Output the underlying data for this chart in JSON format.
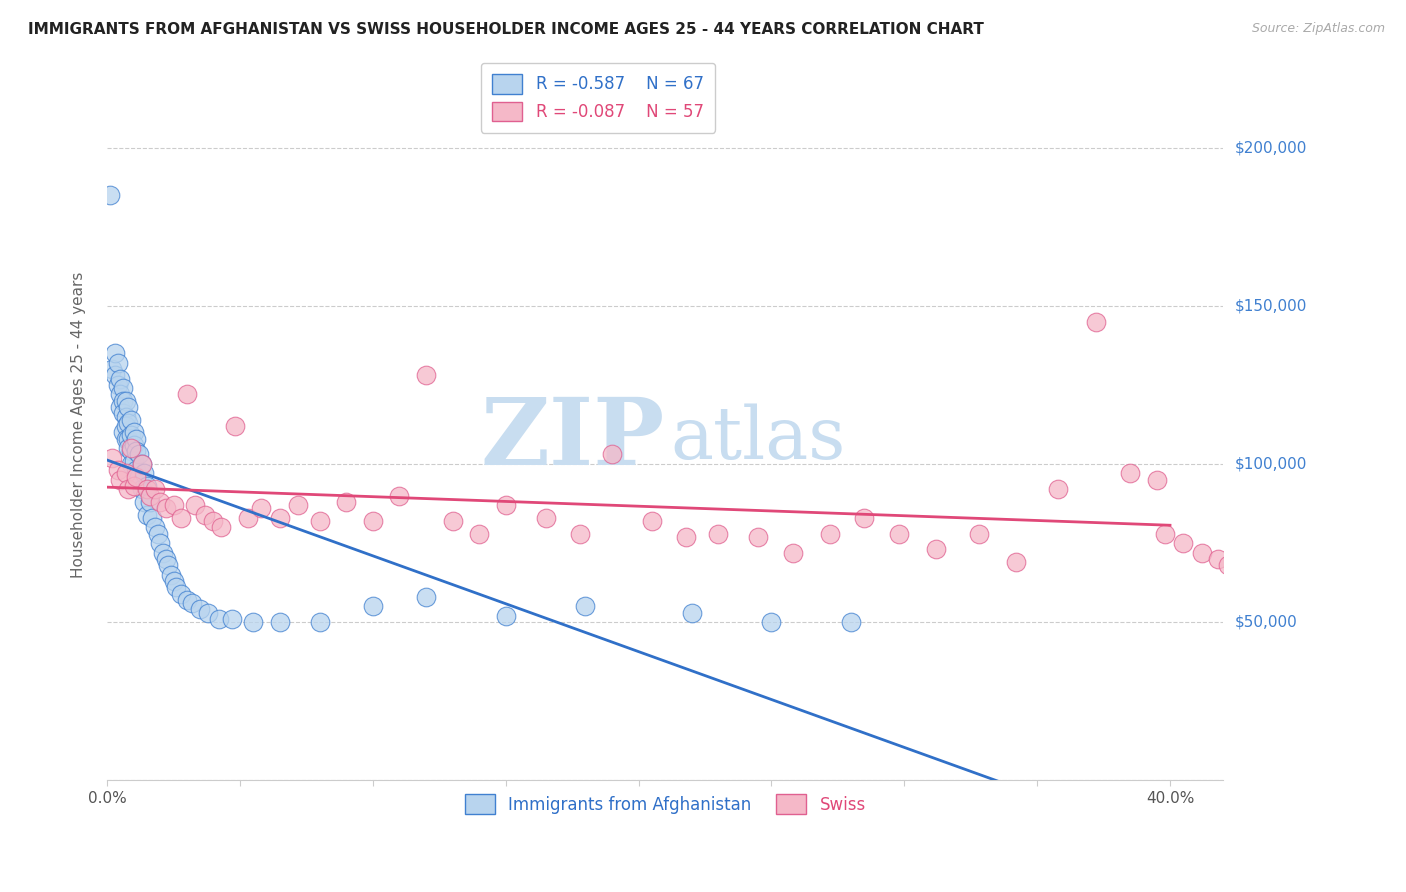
{
  "title": "IMMIGRANTS FROM AFGHANISTAN VS SWISS HOUSEHOLDER INCOME AGES 25 - 44 YEARS CORRELATION CHART",
  "source": "Source: ZipAtlas.com",
  "ylabel": "Householder Income Ages 25 - 44 years",
  "xlim": [
    0.0,
    0.42
  ],
  "ylim": [
    0,
    225000
  ],
  "ytick_vals": [
    0,
    50000,
    100000,
    150000,
    200000
  ],
  "xtick_vals": [
    0.0,
    0.05,
    0.1,
    0.15,
    0.2,
    0.25,
    0.3,
    0.35,
    0.4
  ],
  "legend1_r": "-0.587",
  "legend1_n": "67",
  "legend2_r": "-0.087",
  "legend2_n": "57",
  "legend1_fill": "#b8d4ee",
  "legend2_fill": "#f5b8c8",
  "line1_color": "#3070c8",
  "line2_color": "#e04878",
  "scatter1_edge": "#4080d0",
  "scatter2_edge": "#e06090",
  "watermark_color": "#c8ddf0",
  "title_color": "#222222",
  "source_color": "#aaaaaa",
  "ylabel_color": "#666666",
  "ytick_color": "#4080d0",
  "xtick_color": "#555555",
  "grid_color": "#cccccc",
  "blue_x": [
    0.001,
    0.002,
    0.003,
    0.003,
    0.004,
    0.004,
    0.005,
    0.005,
    0.005,
    0.006,
    0.006,
    0.006,
    0.006,
    0.007,
    0.007,
    0.007,
    0.007,
    0.008,
    0.008,
    0.008,
    0.008,
    0.009,
    0.009,
    0.009,
    0.009,
    0.01,
    0.01,
    0.01,
    0.011,
    0.011,
    0.011,
    0.012,
    0.012,
    0.013,
    0.013,
    0.014,
    0.014,
    0.015,
    0.015,
    0.016,
    0.017,
    0.018,
    0.019,
    0.02,
    0.021,
    0.022,
    0.023,
    0.024,
    0.025,
    0.026,
    0.028,
    0.03,
    0.032,
    0.035,
    0.038,
    0.042,
    0.047,
    0.055,
    0.065,
    0.08,
    0.1,
    0.12,
    0.15,
    0.18,
    0.22,
    0.25,
    0.28
  ],
  "blue_y": [
    185000,
    130000,
    135000,
    128000,
    132000,
    125000,
    127000,
    122000,
    118000,
    124000,
    120000,
    116000,
    110000,
    120000,
    115000,
    112000,
    108000,
    118000,
    113000,
    108000,
    105000,
    114000,
    109000,
    104000,
    100000,
    110000,
    106000,
    101000,
    108000,
    104000,
    98000,
    103000,
    96000,
    100000,
    92000,
    97000,
    88000,
    93000,
    84000,
    88000,
    83000,
    80000,
    78000,
    75000,
    72000,
    70000,
    68000,
    65000,
    63000,
    61000,
    59000,
    57000,
    56000,
    54000,
    53000,
    51000,
    51000,
    50000,
    50000,
    50000,
    55000,
    58000,
    52000,
    55000,
    53000,
    50000,
    50000
  ],
  "pink_x": [
    0.002,
    0.004,
    0.005,
    0.007,
    0.008,
    0.009,
    0.01,
    0.011,
    0.013,
    0.015,
    0.016,
    0.018,
    0.02,
    0.022,
    0.025,
    0.028,
    0.03,
    0.033,
    0.037,
    0.04,
    0.043,
    0.048,
    0.053,
    0.058,
    0.065,
    0.072,
    0.08,
    0.09,
    0.1,
    0.11,
    0.12,
    0.13,
    0.14,
    0.15,
    0.165,
    0.178,
    0.19,
    0.205,
    0.218,
    0.23,
    0.245,
    0.258,
    0.272,
    0.285,
    0.298,
    0.312,
    0.328,
    0.342,
    0.358,
    0.372,
    0.385,
    0.395,
    0.398,
    0.405,
    0.412,
    0.418,
    0.422
  ],
  "pink_y": [
    102000,
    98000,
    95000,
    97000,
    92000,
    105000,
    93000,
    96000,
    100000,
    92000,
    90000,
    92000,
    88000,
    86000,
    87000,
    83000,
    122000,
    87000,
    84000,
    82000,
    80000,
    112000,
    83000,
    86000,
    83000,
    87000,
    82000,
    88000,
    82000,
    90000,
    128000,
    82000,
    78000,
    87000,
    83000,
    78000,
    103000,
    82000,
    77000,
    78000,
    77000,
    72000,
    78000,
    83000,
    78000,
    73000,
    78000,
    69000,
    92000,
    145000,
    97000,
    95000,
    78000,
    75000,
    72000,
    70000,
    68000
  ]
}
